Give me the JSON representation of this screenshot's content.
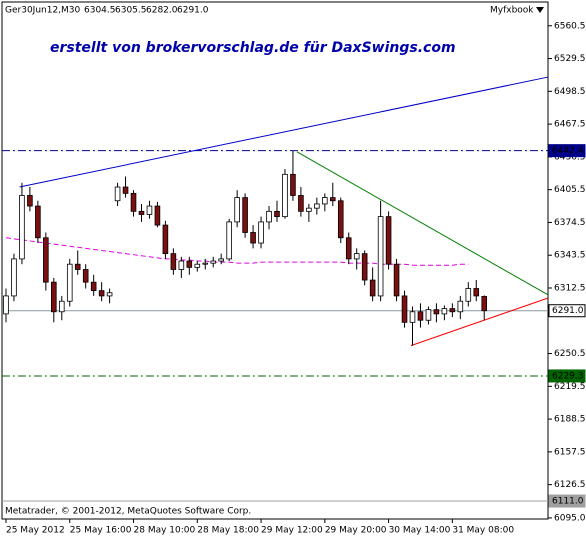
{
  "header": {
    "symbol": "Ger30Jun12,M30",
    "ohlc": [
      "6304.5",
      "6305.5",
      "6282.0",
      "6291.0"
    ],
    "indicator": "Myfxbook"
  },
  "annotation": "erstellt von brokervorschlag.de für DaxSwings.com",
  "footer": "Metatrader, © 2001-2012, MetaQuotes Software Corp.",
  "chart_data": {
    "type": "candlestick",
    "categories": [
      "25 May 2012",
      null,
      null,
      null,
      null,
      null,
      null,
      null,
      "25 May 16:00",
      null,
      null,
      null,
      null,
      null,
      null,
      null,
      "28 May 10:00",
      null,
      null,
      null,
      null,
      null,
      null,
      null,
      "28 May 18:00",
      null,
      null,
      null,
      null,
      null,
      null,
      null,
      "29 May 12:00",
      null,
      null,
      null,
      null,
      null,
      null,
      null,
      "29 May 20:00",
      null,
      null,
      null,
      null,
      null,
      null,
      null,
      "30 May 14:00",
      null,
      null,
      null,
      null,
      null,
      null,
      null,
      "31 May 08:00",
      null,
      null,
      null,
      null
    ],
    "open": [
      6288,
      6305,
      6340,
      6400,
      6390,
      6360,
      6318,
      6290,
      6300,
      6335,
      6330,
      6318,
      6310,
      6305,
      6395,
      6408,
      6402,
      6385,
      6382,
      6390,
      6372,
      6345,
      6330,
      6338,
      6332,
      6335,
      6336,
      6338,
      6340,
      6375,
      6398,
      6365,
      6355,
      6375,
      6385,
      6380,
      6420,
      6400,
      6385,
      6388,
      6392,
      6398,
      6395,
      6360,
      6340,
      6345,
      6320,
      6305,
      6380,
      6335,
      6305,
      6280,
      6290,
      6282,
      6292,
      6288,
      6293,
      6290,
      6300,
      6312,
      6304.5
    ],
    "high": [
      6312,
      6345,
      6412,
      6408,
      6395,
      6365,
      6322,
      6305,
      6340,
      6348,
      6335,
      6325,
      6318,
      6312,
      6412,
      6418,
      6405,
      6392,
      6395,
      6394,
      6376,
      6350,
      6342,
      6342,
      6338,
      6340,
      6342,
      6345,
      6378,
      6405,
      6402,
      6372,
      6380,
      6390,
      6395,
      6425,
      6442,
      6408,
      6392,
      6398,
      6402,
      6412,
      6398,
      6365,
      6350,
      6348,
      6332,
      6395,
      6385,
      6340,
      6310,
      6295,
      6298,
      6295,
      6298,
      6296,
      6298,
      6305,
      6318,
      6320,
      6305.5
    ],
    "low": [
      6280,
      6300,
      6335,
      6385,
      6355,
      6310,
      6280,
      6282,
      6295,
      6325,
      6312,
      6305,
      6300,
      6298,
      6390,
      6398,
      6380,
      6375,
      6378,
      6370,
      6340,
      6325,
      6322,
      6325,
      6328,
      6330,
      6332,
      6335,
      6338,
      6370,
      6360,
      6350,
      6350,
      6368,
      6375,
      6378,
      6395,
      6380,
      6375,
      6382,
      6385,
      6390,
      6355,
      6335,
      6330,
      6315,
      6300,
      6300,
      6330,
      6300,
      6275,
      6258,
      6275,
      6278,
      6280,
      6282,
      6285,
      6283,
      6295,
      6300,
      6282
    ],
    "close": [
      6305,
      6340,
      6400,
      6390,
      6360,
      6318,
      6290,
      6300,
      6335,
      6330,
      6318,
      6310,
      6305,
      6308,
      6408,
      6402,
      6385,
      6382,
      6390,
      6372,
      6345,
      6330,
      6338,
      6332,
      6335,
      6336,
      6338,
      6340,
      6375,
      6398,
      6365,
      6355,
      6375,
      6385,
      6380,
      6420,
      6400,
      6385,
      6388,
      6392,
      6398,
      6395,
      6360,
      6340,
      6345,
      6320,
      6305,
      6380,
      6335,
      6305,
      6280,
      6290,
      6282,
      6292,
      6288,
      6293,
      6290,
      6300,
      6312,
      6305,
      6291
    ],
    "bull_color": "#ffffff",
    "bear_color": "#7a1010",
    "ma": {
      "color": "#e000e0",
      "values": [
        6360,
        6359,
        6358,
        6357,
        6356,
        6355,
        6354,
        6353,
        6352,
        6351,
        6350,
        6349,
        6348,
        6347,
        6346,
        6345,
        6344,
        6343,
        6342,
        6341,
        6340,
        6340,
        6339,
        6339,
        6338,
        6338,
        6337,
        6337,
        6337,
        6336,
        6336,
        6336,
        6337,
        6337,
        6337,
        6337,
        6337,
        6337,
        6337,
        6337,
        6337,
        6337,
        6337,
        6336,
        6336,
        6336,
        6336,
        6335,
        6335,
        6335,
        6335,
        6334,
        6334,
        6334,
        6334,
        6334,
        6334,
        6335,
        6335,
        null,
        null
      ]
    },
    "trendlines": [
      {
        "color": "#0000cc",
        "x": [
          1.7,
          68
        ],
        "y": [
          6408,
          6512
        ]
      },
      {
        "color": "#008000",
        "x": [
          36.5,
          68
        ],
        "y": [
          6441.3,
          6306
        ]
      },
      {
        "color": "#ff0000",
        "x": [
          50.8,
          68
        ],
        "y": [
          6258,
          6303
        ]
      }
    ],
    "levels": [
      {
        "value": 6442.4,
        "label": "6442.4",
        "color": "#00008b",
        "style": "dashdot"
      },
      {
        "value": 6291,
        "label": "6291.0",
        "color": "#8a9aa0",
        "style": "solid"
      },
      {
        "value": 6229.3,
        "label": "6229.3",
        "color": "#006400",
        "style": "dashdot"
      },
      {
        "value": 6111,
        "label": "6111.0",
        "color": "#a0a0a0",
        "style": "solid"
      }
    ],
    "xlim": [
      -0.5,
      68
    ],
    "ylim": [
      6094,
      6583
    ],
    "yticks": [
      6560.5,
      6529.5,
      6498.5,
      6467.5,
      6436.5,
      6405.5,
      6374.5,
      6343.5,
      6312.5,
      6250.5,
      6219.5,
      6188.5,
      6157.5,
      6126.5,
      {
        "value": 6095,
        "label": "6095.0"
      }
    ]
  }
}
